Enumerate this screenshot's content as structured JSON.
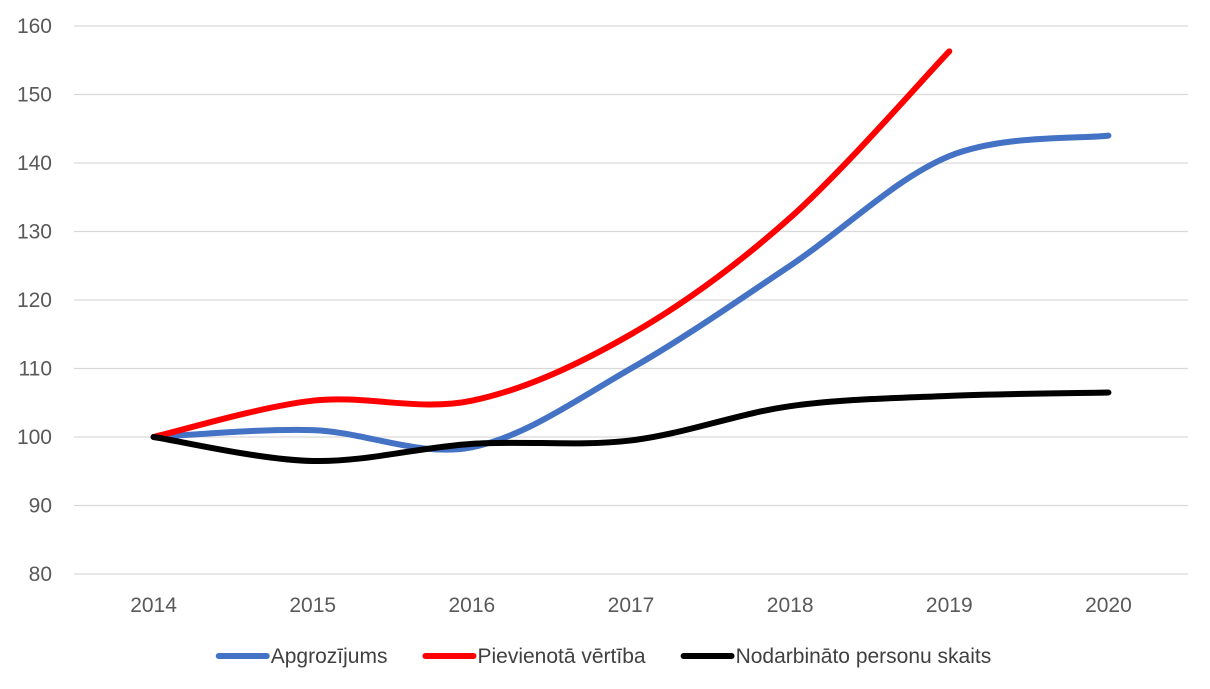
{
  "chart_data": {
    "type": "line",
    "title": "",
    "xlabel": "",
    "ylabel": "",
    "categories": [
      "2014",
      "2015",
      "2016",
      "2017",
      "2018",
      "2019",
      "2020"
    ],
    "ylim": [
      80,
      160
    ],
    "yticks": [
      80,
      90,
      100,
      110,
      120,
      130,
      140,
      150,
      160
    ],
    "grid": true,
    "legend_position": "bottom",
    "smooth": true,
    "series": [
      {
        "name": "Apgrozījums",
        "color": "#4472c4",
        "values": [
          100,
          101,
          98.5,
          110,
          125,
          141,
          144
        ]
      },
      {
        "name": "Pievienotā vērtība",
        "color": "#ff0000",
        "values": [
          100,
          105.3,
          105.3,
          115,
          132,
          156.3,
          null
        ]
      },
      {
        "name": "Nodarbināto personu skaits",
        "color": "#000000",
        "values": [
          100,
          96.5,
          99,
          99.5,
          104.5,
          106,
          106.5
        ]
      }
    ]
  }
}
